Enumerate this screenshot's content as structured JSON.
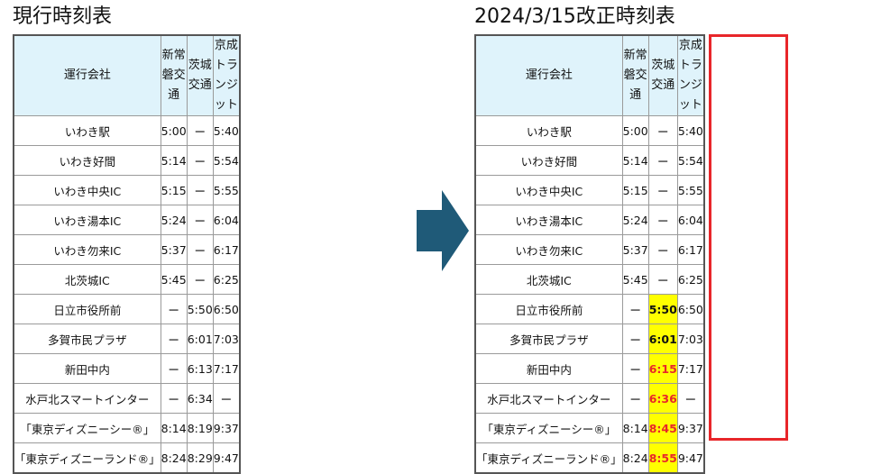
{
  "current": {
    "title": "現行時刻表",
    "headers": [
      "運行会社",
      "新常磐交通",
      "茨城交通",
      "京成トランジット"
    ],
    "rows": [
      [
        "いわき駅",
        "5:00",
        "ー",
        "5:40"
      ],
      [
        "いわき好間",
        "5:14",
        "ー",
        "5:54"
      ],
      [
        "いわき中央IC",
        "5:15",
        "ー",
        "5:55"
      ],
      [
        "いわき湯本IC",
        "5:24",
        "ー",
        "6:04"
      ],
      [
        "いわき勿来IC",
        "5:37",
        "ー",
        "6:17"
      ],
      [
        "北茨城IC",
        "5:45",
        "ー",
        "6:25"
      ],
      [
        "日立市役所前",
        "ー",
        "5:50",
        "6:50"
      ],
      [
        "多賀市民プラザ",
        "ー",
        "6:01",
        "7:03"
      ],
      [
        "新田中内",
        "ー",
        "6:13",
        "7:17"
      ],
      [
        "水戸北スマートインター",
        "ー",
        "6:34",
        "ー"
      ],
      [
        "「東京ディズニーシー®」",
        "8:14",
        "8:19",
        "9:37"
      ],
      [
        "「東京ディズニーランド®」",
        "8:24",
        "8:29",
        "9:47"
      ]
    ]
  },
  "revised": {
    "title": "2024/3/15改正時刻表",
    "headers": [
      "運行会社",
      "新常磐交通",
      "茨城交通",
      "京成トランジット"
    ],
    "rows": [
      [
        "いわき駅",
        "5:00",
        "ー",
        "5:40"
      ],
      [
        "いわき好間",
        "5:14",
        "ー",
        "5:54"
      ],
      [
        "いわき中央IC",
        "5:15",
        "ー",
        "5:55"
      ],
      [
        "いわき湯本IC",
        "5:24",
        "ー",
        "6:04"
      ],
      [
        "いわき勿来IC",
        "5:37",
        "ー",
        "6:17"
      ],
      [
        "北茨城IC",
        "5:45",
        "ー",
        "6:25"
      ],
      [
        "日立市役所前",
        "ー",
        "5:50",
        "6:50"
      ],
      [
        "多賀市民プラザ",
        "ー",
        "6:01",
        "7:03"
      ],
      [
        "新田中内",
        "ー",
        "6:15",
        "7:17"
      ],
      [
        "水戸北スマートインター",
        "ー",
        "6:36",
        "ー"
      ],
      [
        "「東京ディズニーシー®」",
        "8:14",
        "8:45",
        "9:37"
      ],
      [
        "「東京ディズニーランド®」",
        "8:24",
        "8:55",
        "9:47"
      ]
    ],
    "highlight_column": 2,
    "highlight_color": "#ffff00",
    "changed_text_color": "#e8262a",
    "box_color": "#e8262a"
  },
  "arrow_color": "#1f5a78",
  "arrow_icon": "right-arrow-icon"
}
